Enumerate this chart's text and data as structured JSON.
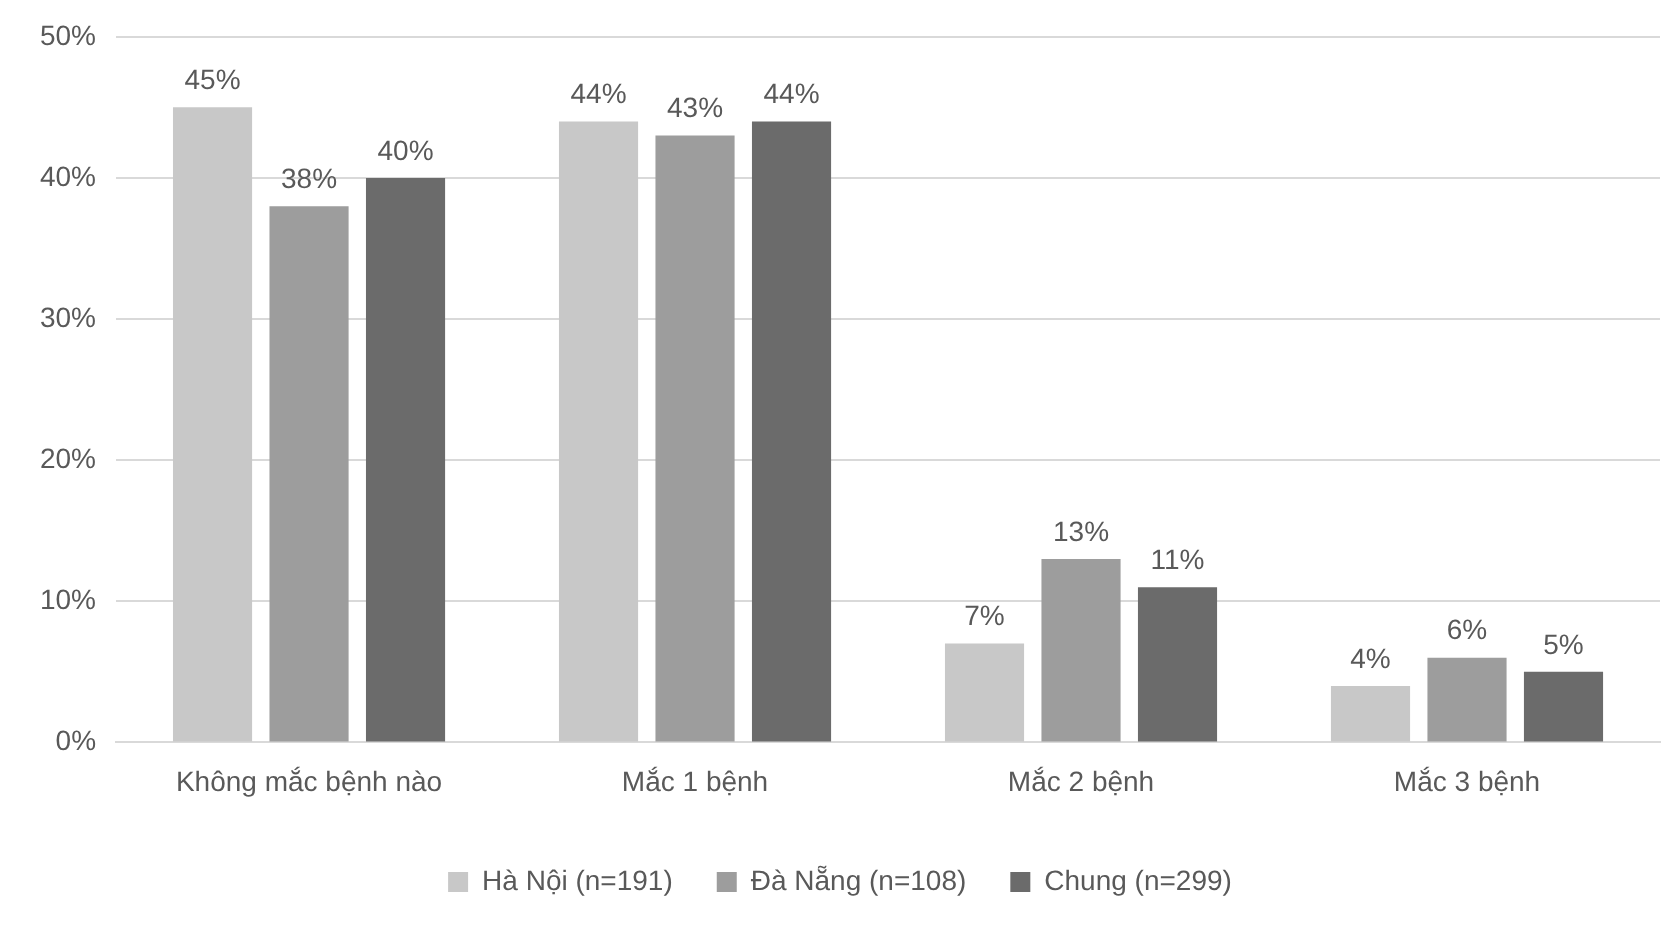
{
  "chart_data": {
    "type": "bar",
    "categories": [
      "Không mắc bệnh nào",
      "Mắc 1 bệnh",
      "Mắc 2 bệnh",
      "Mắc 3 bệnh"
    ],
    "series": [
      {
        "name": "Hà Nội (n=191)",
        "color": "#c8c8c8",
        "values": [
          45,
          44,
          7,
          4
        ],
        "value_labels": [
          "45%",
          "44%",
          "7%",
          "4%"
        ]
      },
      {
        "name": "Đà Nẵng (n=108)",
        "color": "#9d9d9d",
        "values": [
          38,
          43,
          13,
          6
        ],
        "value_labels": [
          "38%",
          "43%",
          "13%",
          "6%"
        ]
      },
      {
        "name": "Chung (n=299)",
        "color": "#6b6b6b",
        "values": [
          40,
          44,
          11,
          5
        ],
        "value_labels": [
          "40%",
          "44%",
          "11%",
          "5%"
        ]
      }
    ],
    "ylim": [
      0,
      50
    ],
    "yticks": [
      {
        "value": 0,
        "label": "0%"
      },
      {
        "value": 10,
        "label": "10%"
      },
      {
        "value": 20,
        "label": "20%"
      },
      {
        "value": 30,
        "label": "30%"
      },
      {
        "value": 40,
        "label": "40%"
      },
      {
        "value": 50,
        "label": "50%"
      }
    ],
    "grid": "y",
    "legend": "bottom"
  }
}
